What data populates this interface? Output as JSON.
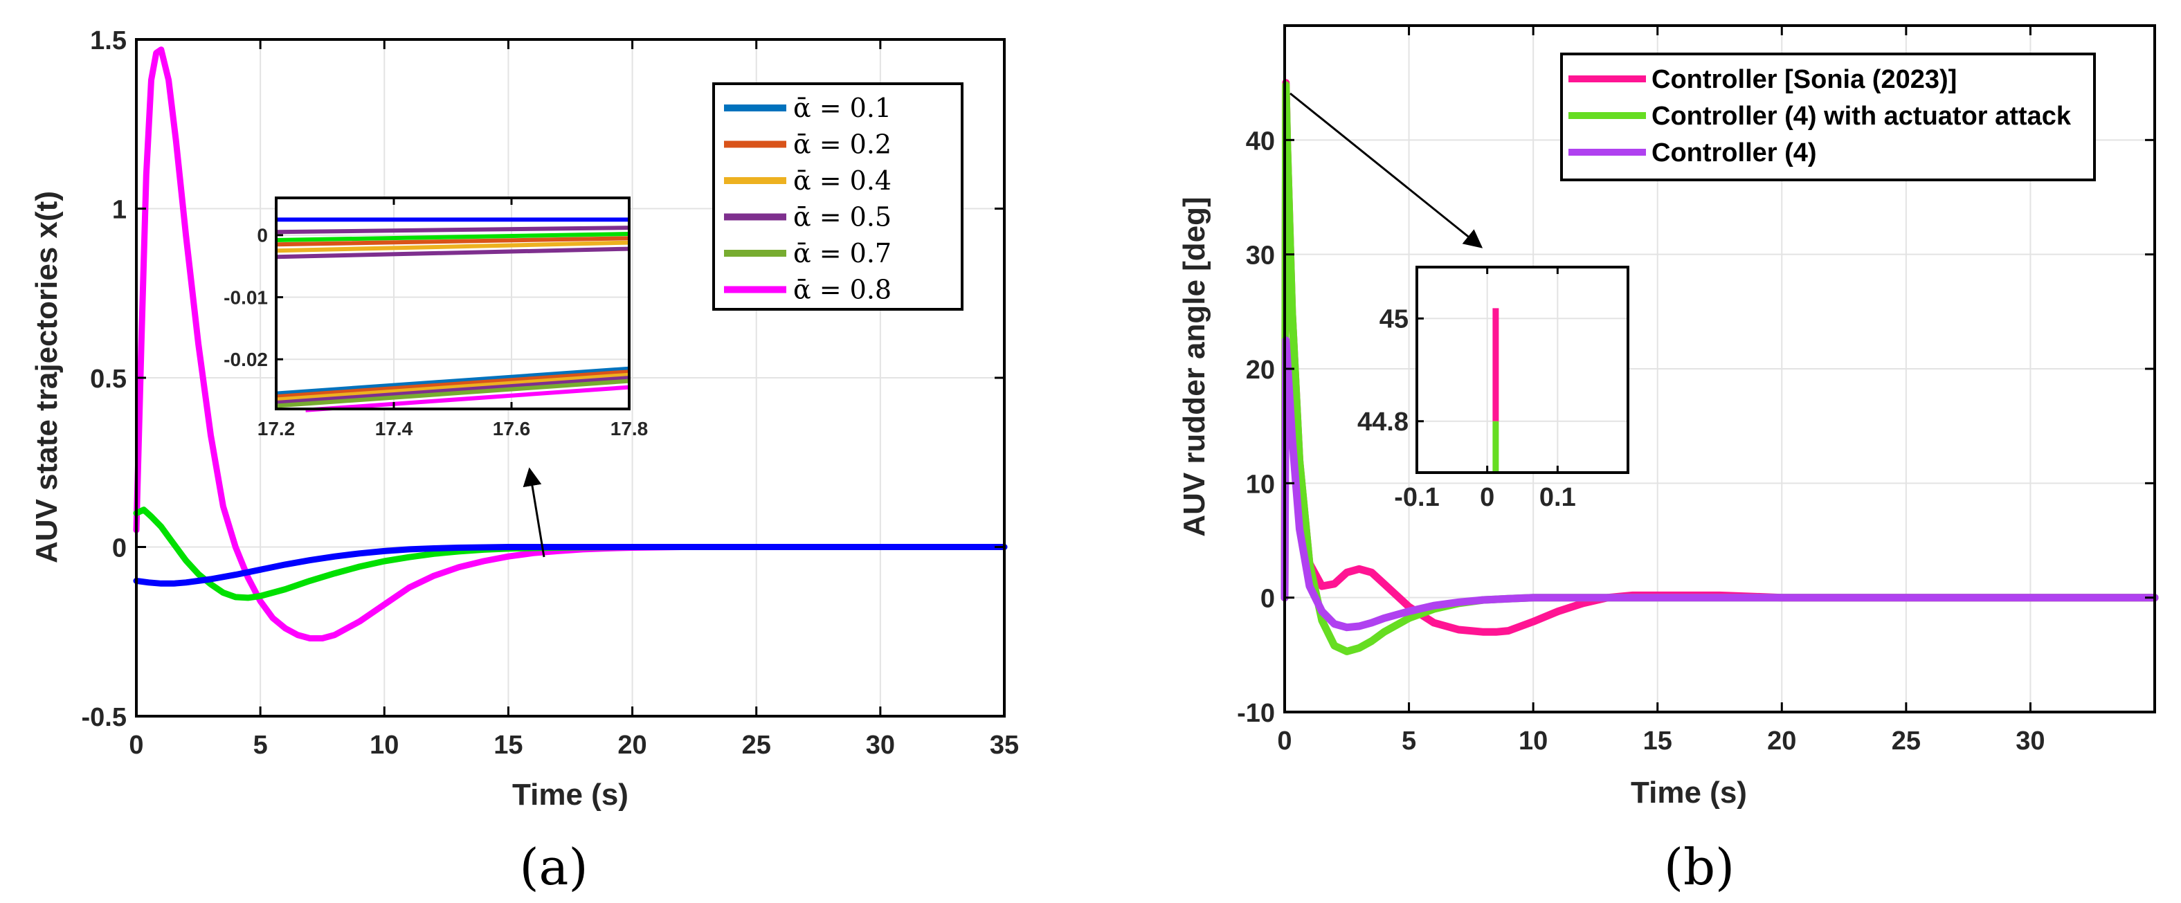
{
  "chart_data": [
    {
      "type": "line",
      "panel_label": "(a)",
      "xlabel": "Time (s)",
      "ylabel": "AUV state trajectories x(t)",
      "xlim": [
        0,
        35
      ],
      "ylim": [
        -0.5,
        1.5
      ],
      "xticks": [
        0,
        5,
        10,
        15,
        20,
        25,
        30,
        35
      ],
      "xtick_labels": [
        "0",
        "5",
        "10",
        "15",
        "20",
        "25",
        "30",
        "35"
      ],
      "yticks": [
        -0.5,
        0,
        0.5,
        1,
        1.5
      ],
      "ytick_labels": [
        "-0.5",
        "0",
        "0.5",
        "1",
        "1.5"
      ],
      "grid": true,
      "legend_position": "top-right",
      "legend": [
        {
          "label": "ᾱ = 0.1",
          "color": "#0072BD"
        },
        {
          "label": "ᾱ = 0.2",
          "color": "#D95319"
        },
        {
          "label": "ᾱ = 0.4",
          "color": "#EDB120"
        },
        {
          "label": "ᾱ = 0.5",
          "color": "#7E2F8E"
        },
        {
          "label": "ᾱ = 0.7",
          "color": "#77AC30"
        },
        {
          "label": "ᾱ = 0.8",
          "color": "#FF00FF"
        }
      ],
      "series": [
        {
          "name": "state-magenta",
          "color": "#FF00FF",
          "x": [
            0,
            0.2,
            0.4,
            0.6,
            0.8,
            1.0,
            1.3,
            1.6,
            2.0,
            2.5,
            3.0,
            3.5,
            4.0,
            4.5,
            5.0,
            5.5,
            6.0,
            6.5,
            7.0,
            7.5,
            8.0,
            9.0,
            10.0,
            11.0,
            12.0,
            13.0,
            14.0,
            15.0,
            16.0,
            17.0,
            18.0,
            19.0,
            20.0,
            22.0,
            25.0,
            30.0,
            35.0
          ],
          "y": [
            0.05,
            0.6,
            1.1,
            1.38,
            1.46,
            1.47,
            1.38,
            1.2,
            0.92,
            0.6,
            0.33,
            0.12,
            0.0,
            -0.09,
            -0.16,
            -0.21,
            -0.24,
            -0.26,
            -0.27,
            -0.27,
            -0.26,
            -0.22,
            -0.17,
            -0.12,
            -0.085,
            -0.06,
            -0.042,
            -0.028,
            -0.018,
            -0.012,
            -0.007,
            -0.004,
            -0.002,
            0.0,
            0.0,
            0.0,
            0.0
          ]
        },
        {
          "name": "state-green",
          "color": "#00E000",
          "x": [
            0,
            0.3,
            0.6,
            1.0,
            1.5,
            2.0,
            2.5,
            3.0,
            3.5,
            4.0,
            4.5,
            5.0,
            6.0,
            7.0,
            8.0,
            9.0,
            10.0,
            11.0,
            12.0,
            13.0,
            14.0,
            15.0,
            16.0,
            18.0,
            20.0,
            25.0,
            30.0,
            35.0
          ],
          "y": [
            0.1,
            0.11,
            0.09,
            0.06,
            0.01,
            -0.04,
            -0.08,
            -0.11,
            -0.135,
            -0.148,
            -0.15,
            -0.145,
            -0.125,
            -0.1,
            -0.078,
            -0.058,
            -0.042,
            -0.03,
            -0.02,
            -0.013,
            -0.008,
            -0.005,
            -0.003,
            -0.001,
            0.0,
            0.0,
            0.0,
            0.0
          ]
        },
        {
          "name": "state-blue",
          "color": "#0000FF",
          "x": [
            0,
            0.5,
            1.0,
            1.5,
            2.0,
            3.0,
            4.0,
            5.0,
            6.0,
            7.0,
            8.0,
            9.0,
            10.0,
            11.0,
            12.0,
            13.0,
            14.0,
            15.0,
            16.0,
            18.0,
            20.0,
            25.0,
            30.0,
            35.0
          ],
          "y": [
            -0.1,
            -0.105,
            -0.108,
            -0.108,
            -0.105,
            -0.095,
            -0.082,
            -0.067,
            -0.052,
            -0.039,
            -0.028,
            -0.019,
            -0.012,
            -0.007,
            -0.004,
            -0.002,
            -0.001,
            0.0,
            0.0,
            0.0,
            0.0,
            0.0,
            0.0,
            0.0
          ]
        }
      ],
      "inset": {
        "xlim": [
          17.2,
          17.8
        ],
        "ylim": [
          -0.028,
          0.006
        ],
        "xticks": [
          17.2,
          17.4,
          17.6,
          17.8
        ],
        "xtick_labels": [
          "17.2",
          "17.4",
          "17.6",
          "17.8"
        ],
        "yticks": [
          0,
          -0.01,
          -0.02
        ],
        "ytick_labels": [
          "0",
          "-0.01",
          "-0.02"
        ],
        "series": [
          {
            "color": "#0000FF",
            "x": [
              17.2,
              17.8
            ],
            "y": [
              0.0025,
              0.0025
            ]
          },
          {
            "color": "#7E2F8E",
            "x": [
              17.2,
              17.8
            ],
            "y": [
              0.0005,
              0.0012
            ]
          },
          {
            "color": "#00E000",
            "x": [
              17.2,
              17.8
            ],
            "y": [
              -0.0008,
              0.0002
            ]
          },
          {
            "color": "#D95319",
            "x": [
              17.2,
              17.8
            ],
            "y": [
              -0.0015,
              -0.0005
            ]
          },
          {
            "color": "#EDB120",
            "x": [
              17.2,
              17.8
            ],
            "y": [
              -0.0025,
              -0.0012
            ]
          },
          {
            "color": "#7E2F8E",
            "x": [
              17.2,
              17.8
            ],
            "y": [
              -0.0035,
              -0.0022
            ]
          },
          {
            "color": "#0072BD",
            "x": [
              17.2,
              17.8
            ],
            "y": [
              -0.0255,
              -0.0215
            ]
          },
          {
            "color": "#D95319",
            "x": [
              17.2,
              17.8
            ],
            "y": [
              -0.026,
              -0.022
            ]
          },
          {
            "color": "#EDB120",
            "x": [
              17.2,
              17.8
            ],
            "y": [
              -0.0265,
              -0.0225
            ]
          },
          {
            "color": "#7E2F8E",
            "x": [
              17.2,
              17.8
            ],
            "y": [
              -0.027,
              -0.023
            ]
          },
          {
            "color": "#77AC30",
            "x": [
              17.2,
              17.8
            ],
            "y": [
              -0.0275,
              -0.0235
            ]
          },
          {
            "color": "#FF00FF",
            "x": [
              17.25,
              17.8
            ],
            "y": [
              -0.0282,
              -0.0245
            ]
          }
        ]
      },
      "annotation": {
        "type": "arrow",
        "from": [
          16.5,
          -0.035
        ],
        "to": [
          15.8,
          0.23
        ]
      }
    },
    {
      "type": "line",
      "panel_label": "(b)",
      "xlabel": "Time (s)",
      "ylabel": "AUV rudder angle [deg]",
      "xlim": [
        0,
        35
      ],
      "ylim": [
        -10,
        50
      ],
      "xticks": [
        0,
        5,
        10,
        15,
        20,
        25,
        30
      ],
      "xtick_labels": [
        "0",
        "5",
        "10",
        "15",
        "20",
        "25",
        "30"
      ],
      "yticks": [
        -10,
        0,
        10,
        20,
        30,
        40
      ],
      "ytick_labels": [
        "-10",
        "0",
        "10",
        "20",
        "30",
        "40"
      ],
      "grid": true,
      "legend_position": "top-right",
      "legend": [
        {
          "label": "Controller [Sonia (2023)]",
          "color": "#FF1493"
        },
        {
          "label": "Controller (4) with actuator attack",
          "color": "#66DD22"
        },
        {
          "label": "Controller (4)",
          "color": "#B041F0"
        }
      ],
      "series": [
        {
          "name": "Controller [Sonia (2023)]",
          "color": "#FF1493",
          "x": [
            0,
            0.05,
            0.1,
            0.3,
            0.6,
            1.0,
            1.5,
            2.0,
            2.5,
            3.0,
            3.5,
            4.0,
            5.0,
            6.0,
            7.0,
            8.0,
            8.5,
            9.0,
            10.0,
            11.0,
            12.0,
            13.0,
            14.0,
            15.0,
            17.5,
            20.0,
            25.0,
            35.0
          ],
          "y": [
            0,
            45,
            40,
            25,
            12,
            3,
            1.0,
            1.2,
            2.2,
            2.5,
            2.2,
            1.2,
            -0.8,
            -2.2,
            -2.8,
            -3.0,
            -3.0,
            -2.9,
            -2.1,
            -1.2,
            -0.5,
            0.0,
            0.2,
            0.2,
            0.2,
            0.0,
            0.0,
            0.0
          ]
        },
        {
          "name": "Controller (4) with actuator attack",
          "color": "#66DD22",
          "x": [
            0,
            0.05,
            0.1,
            0.3,
            0.6,
            1.0,
            1.5,
            2.0,
            2.5,
            3.0,
            3.5,
            4.0,
            5.0,
            6.0,
            7.0,
            8.0,
            9.0,
            10.0,
            12.0,
            15.0,
            20.0,
            35.0
          ],
          "y": [
            0,
            44.8,
            40,
            25,
            12,
            3,
            -2.0,
            -4.2,
            -4.7,
            -4.4,
            -3.8,
            -3.0,
            -1.8,
            -1.0,
            -0.5,
            -0.2,
            -0.1,
            0.0,
            0.0,
            0.0,
            0.0,
            0.0
          ]
        },
        {
          "name": "Controller (4)",
          "color": "#B041F0",
          "x": [
            0,
            0.05,
            0.1,
            0.3,
            0.6,
            1.0,
            1.5,
            2.0,
            2.5,
            3.0,
            3.5,
            4.0,
            5.0,
            6.0,
            7.0,
            8.0,
            9.0,
            10.0,
            12.0,
            15.0,
            20.0,
            35.0
          ],
          "y": [
            0,
            22.5,
            21,
            14,
            6,
            1,
            -1.2,
            -2.3,
            -2.6,
            -2.5,
            -2.2,
            -1.8,
            -1.2,
            -0.7,
            -0.4,
            -0.2,
            -0.1,
            0.0,
            0.0,
            0.0,
            0.0,
            0.0
          ]
        }
      ],
      "inset": {
        "xlim": [
          -0.1,
          0.2
        ],
        "ylim": [
          44.7,
          45.1
        ],
        "xticks": [
          -0.1,
          0,
          0.1
        ],
        "xtick_labels": [
          "-0.1",
          "0",
          "0.1"
        ],
        "yticks": [
          45,
          44.8
        ],
        "ytick_labels": [
          "45",
          "44.8"
        ],
        "series": [
          {
            "color": "#FF1493",
            "x": [
              0.012,
              0.012
            ],
            "y": [
              44.8,
              45.02
            ]
          },
          {
            "color": "#66DD22",
            "x": [
              0.012,
              0.012
            ],
            "y": [
              44.7,
              44.8
            ]
          }
        ]
      },
      "annotation": {
        "type": "arrow",
        "from": [
          0.3,
          44.5
        ],
        "to": [
          7.8,
          28.6
        ]
      }
    }
  ]
}
